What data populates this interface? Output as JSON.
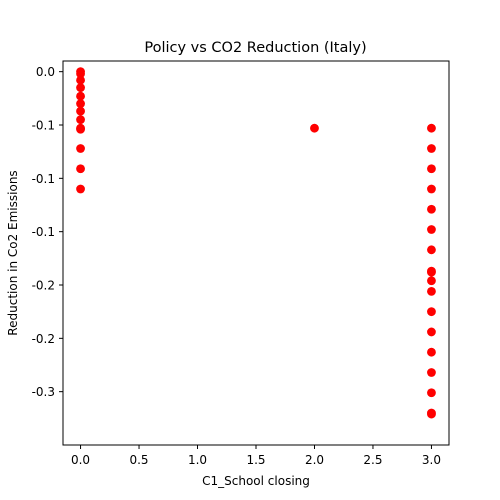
{
  "chart_data": {
    "type": "scatter",
    "title": "Policy vs CO2 Reduction (Italy)",
    "xlabel": "C1_School closing",
    "ylabel": "Reduction in Co2 Emissions",
    "xlim": [
      -0.15,
      3.15
    ],
    "ylim": [
      -0.35,
      0.01
    ],
    "x_ticks": [
      0.0,
      0.5,
      1.0,
      1.5,
      2.0,
      2.5,
      3.0
    ],
    "x_tick_labels": [
      "0.0",
      "0.5",
      "1.0",
      "1.5",
      "2.0",
      "2.5",
      "3.0"
    ],
    "y_ticks": [
      0.0,
      -0.05,
      -0.1,
      -0.15,
      -0.2,
      -0.25,
      -0.3
    ],
    "y_tick_labels": [
      "0.0",
      "-0.1",
      "-0.1",
      "-0.1",
      "-0.2",
      "-0.2",
      "-0.3"
    ],
    "marker_color": "#ff0000",
    "grid": false,
    "series": [
      {
        "points": [
          {
            "x": 0,
            "y": 0.0
          },
          {
            "x": 0,
            "y": -0.002
          },
          {
            "x": 0,
            "y": -0.008
          },
          {
            "x": 0,
            "y": -0.015
          },
          {
            "x": 0,
            "y": -0.023
          },
          {
            "x": 0,
            "y": -0.03
          },
          {
            "x": 0,
            "y": -0.037
          },
          {
            "x": 0,
            "y": -0.045
          },
          {
            "x": 0,
            "y": -0.053
          },
          {
            "x": 0,
            "y": -0.054
          },
          {
            "x": 0,
            "y": -0.072
          },
          {
            "x": 0,
            "y": -0.091
          },
          {
            "x": 0,
            "y": -0.11
          },
          {
            "x": 2,
            "y": -0.053
          },
          {
            "x": 3,
            "y": -0.053
          },
          {
            "x": 3,
            "y": -0.072
          },
          {
            "x": 3,
            "y": -0.091
          },
          {
            "x": 3,
            "y": -0.11
          },
          {
            "x": 3,
            "y": -0.129
          },
          {
            "x": 3,
            "y": -0.148
          },
          {
            "x": 3,
            "y": -0.167
          },
          {
            "x": 3,
            "y": -0.187
          },
          {
            "x": 3,
            "y": -0.188
          },
          {
            "x": 3,
            "y": -0.196
          },
          {
            "x": 3,
            "y": -0.206
          },
          {
            "x": 3,
            "y": -0.225
          },
          {
            "x": 3,
            "y": -0.244
          },
          {
            "x": 3,
            "y": -0.263
          },
          {
            "x": 3,
            "y": -0.282
          },
          {
            "x": 3,
            "y": -0.301
          },
          {
            "x": 3,
            "y": -0.32
          },
          {
            "x": 3,
            "y": -0.321
          }
        ]
      }
    ]
  }
}
